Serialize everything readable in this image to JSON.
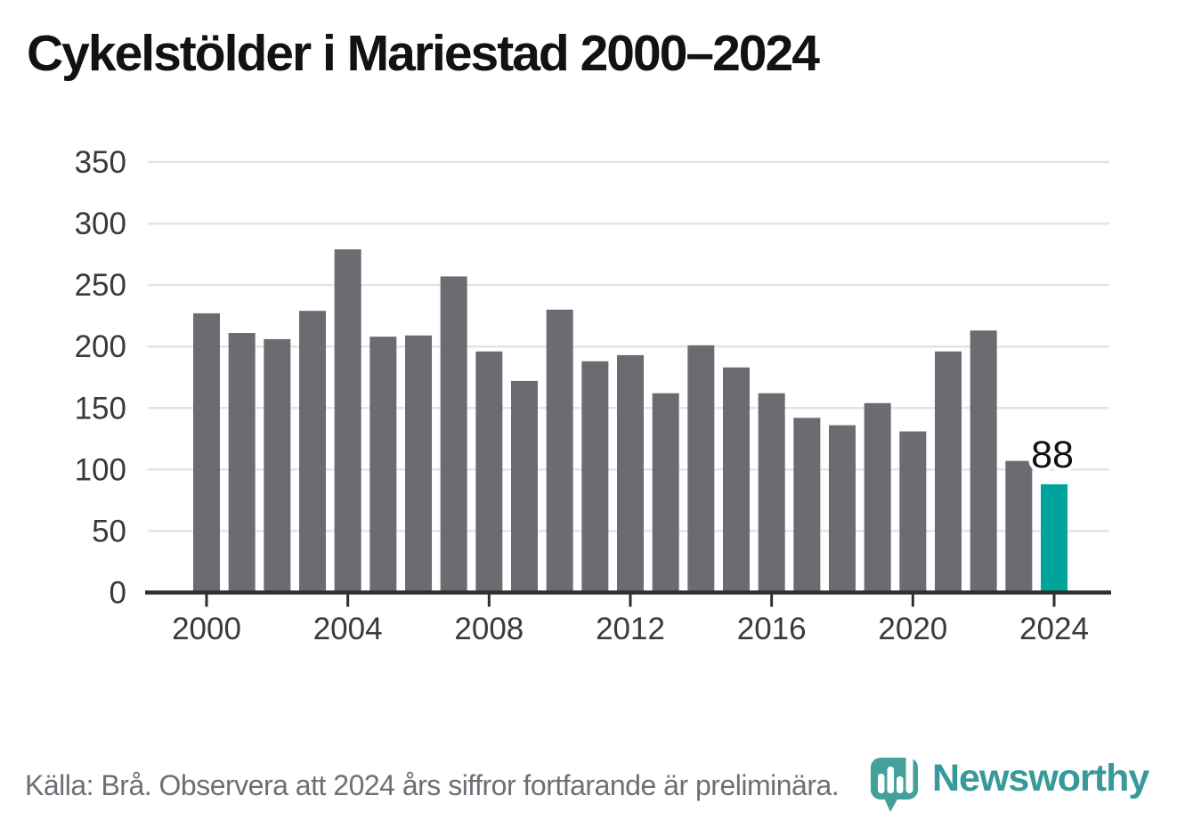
{
  "title": "Cykelstölder i Mariestad 2000–2024",
  "chart_data": {
    "type": "bar",
    "title": "Cykelstölder i Mariestad 2000–2024",
    "categories": [
      2000,
      2001,
      2002,
      2003,
      2004,
      2005,
      2006,
      2007,
      2008,
      2009,
      2010,
      2011,
      2012,
      2013,
      2014,
      2015,
      2016,
      2017,
      2018,
      2019,
      2020,
      2021,
      2022,
      2023,
      2024
    ],
    "values": [
      227,
      211,
      206,
      229,
      279,
      208,
      209,
      257,
      196,
      172,
      230,
      188,
      193,
      162,
      201,
      183,
      162,
      142,
      136,
      154,
      131,
      196,
      213,
      107,
      88
    ],
    "xlabel": "",
    "ylabel": "",
    "ylim": [
      0,
      350
    ],
    "yticks": [
      0,
      50,
      100,
      150,
      200,
      250,
      300,
      350
    ],
    "xticks": [
      2000,
      2004,
      2008,
      2012,
      2016,
      2020,
      2024
    ],
    "grid": true,
    "legend_position": "none",
    "highlight_category": 2024,
    "value_label": {
      "category": 2024,
      "text": "88"
    },
    "colors": {
      "bar": "#6d6a72",
      "highlight_bar": "#00a49a",
      "gridline": "#e4e4e4",
      "axis_line": "#2e2e2e",
      "tick_label": "#3a3a3a",
      "value_label": "#111111"
    }
  },
  "footer": {
    "source_text": "Källa: Brå. Observera att 2024 års siffror fortfarande är preliminära."
  },
  "branding": {
    "wordmark": "Newsworthy",
    "logo_icon": "newsworthy-speech-bubble-chart-icon",
    "brand_color": "#38999a"
  }
}
